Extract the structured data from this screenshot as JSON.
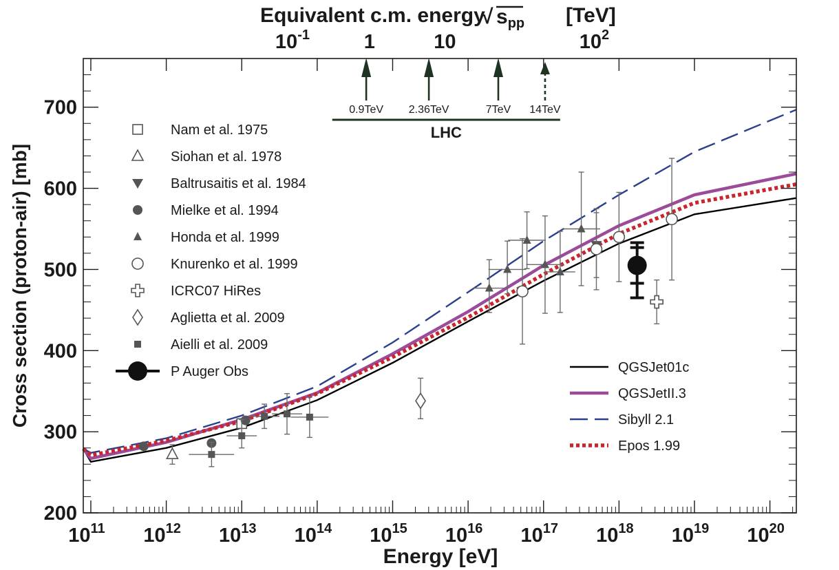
{
  "chart_data": {
    "type": "scatter",
    "title": "",
    "xlabel": "Energy    [eV]",
    "ylabel": "Cross section (proton-air)   [mb]",
    "top_axis_label": "Equivalent c.m. energy",
    "top_axis_sqrt": "√",
    "top_axis_s": "s",
    "top_axis_sub": "pp",
    "top_axis_unit": "[TeV]",
    "xscale": "log",
    "xlim_log10": [
      10.9,
      20.35
    ],
    "ylim": [
      200,
      760
    ],
    "x_ticks": [
      {
        "exp": 11,
        "base": "10",
        "sup": "11"
      },
      {
        "exp": 12,
        "base": "10",
        "sup": "12"
      },
      {
        "exp": 13,
        "base": "10",
        "sup": "13"
      },
      {
        "exp": 14,
        "base": "10",
        "sup": "14"
      },
      {
        "exp": 15,
        "base": "10",
        "sup": "15"
      },
      {
        "exp": 16,
        "base": "10",
        "sup": "16"
      },
      {
        "exp": 17,
        "base": "10",
        "sup": "17"
      },
      {
        "exp": 18,
        "base": "10",
        "sup": "18"
      },
      {
        "exp": 19,
        "base": "10",
        "sup": "19"
      },
      {
        "exp": 20,
        "base": "10",
        "sup": "20"
      }
    ],
    "y_ticks": [
      200,
      300,
      400,
      500,
      600,
      700
    ],
    "top_ticks": [
      {
        "lab_exp": 13.7,
        "base": "10",
        "sup": "-1"
      },
      {
        "lab_exp": 14.72,
        "base": "1",
        "sup": ""
      },
      {
        "lab_exp": 15.72,
        "base": "10",
        "sup": ""
      },
      {
        "lab_exp": 17.7,
        "base": "10",
        "sup": "2"
      }
    ],
    "lhc_label": "LHC",
    "lhc_range_log10": [
      14.2,
      17.22
    ],
    "lhc_arrows": [
      {
        "label": "0.9TeV",
        "x": 14.65,
        "dashed": false
      },
      {
        "label": "2.36TeV",
        "x": 15.48,
        "dashed": false
      },
      {
        "label": "7TeV",
        "x": 16.4,
        "dashed": false
      },
      {
        "label": "14TeV",
        "x": 17.02,
        "dashed": true
      }
    ],
    "series": [
      {
        "name": "Nam et al. 1975",
        "marker": "square-open",
        "points": [
          {
            "x": 13.0,
            "y": 310
          }
        ]
      },
      {
        "name": "Siohan et al. 1978",
        "marker": "triangle-up-open",
        "points": [
          {
            "x": 12.08,
            "y": 272,
            "yerr": [
              12,
              12
            ]
          }
        ]
      },
      {
        "name": "Baltrusaitis et al. 1984",
        "marker": "triangle-down-filled",
        "points": [
          {
            "x": 17.7,
            "y": 530,
            "yerr": [
              40,
              40
            ]
          }
        ]
      },
      {
        "name": "Mielke et al. 1994",
        "marker": "circle-filled",
        "points": [
          {
            "x": 11.7,
            "y": 282
          },
          {
            "x": 12.6,
            "y": 286
          },
          {
            "x": 13.05,
            "y": 314
          }
        ]
      },
      {
        "name": "Honda et al. 1999",
        "marker": "triangle-up-filled",
        "points": [
          {
            "x": 16.28,
            "y": 477,
            "yerr": [
              30,
              35
            ],
            "xerr": [
              0.22,
              0.22
            ]
          },
          {
            "x": 16.52,
            "y": 500,
            "yerr": [
              30,
              35
            ],
            "xerr": [
              0.25,
              0.25
            ]
          },
          {
            "x": 16.78,
            "y": 536,
            "yerr": [
              35,
              35
            ],
            "xerr": [
              0.25,
              0.25
            ]
          },
          {
            "x": 17.02,
            "y": 506,
            "yerr": [
              60,
              60
            ],
            "xerr": [
              0.25,
              0.25
            ]
          },
          {
            "x": 17.22,
            "y": 497,
            "yerr": [
              50,
              50
            ],
            "xerr": [
              0.2,
              0.2
            ]
          },
          {
            "x": 17.5,
            "y": 550,
            "yerr": [
              70,
              70
            ],
            "xerr": [
              0.25,
              0.25
            ]
          }
        ]
      },
      {
        "name": "Knurenko et al. 1999",
        "marker": "circle-open",
        "points": [
          {
            "x": 16.72,
            "y": 473,
            "yerr": [
              65,
              65
            ]
          },
          {
            "x": 17.7,
            "y": 525,
            "yerr": [
              50,
              50
            ]
          },
          {
            "x": 18.0,
            "y": 540,
            "yerr": [
              55,
              55
            ]
          },
          {
            "x": 18.7,
            "y": 562,
            "yerr": [
              75,
              75
            ]
          }
        ]
      },
      {
        "name": "ICRC07 HiRes",
        "marker": "cross-open",
        "points": [
          {
            "x": 18.5,
            "y": 460,
            "yerr": [
              27,
              27
            ]
          }
        ]
      },
      {
        "name": "Aglietta et al. 2009",
        "marker": "diamond-open",
        "points": [
          {
            "x": 15.37,
            "y": 338,
            "yerr": [
              22,
              28
            ]
          }
        ]
      },
      {
        "name": "Aielli et al. 2009",
        "marker": "square-filled",
        "points": [
          {
            "x": 12.6,
            "y": 272,
            "xerr": [
              0.3,
              0.3
            ],
            "yerr": [
              15,
              15
            ]
          },
          {
            "x": 13.0,
            "y": 295,
            "xerr": [
              0.2,
              0.2
            ],
            "yerr": [
              15,
              20
            ]
          },
          {
            "x": 13.3,
            "y": 319,
            "xerr": [
              0.2,
              0.2
            ],
            "yerr": [
              15,
              15
            ]
          },
          {
            "x": 13.6,
            "y": 322,
            "xerr": [
              0.2,
              0.2
            ],
            "yerr": [
              25,
              25
            ]
          },
          {
            "x": 13.9,
            "y": 318,
            "xerr": [
              0.25,
              0.25
            ],
            "yerr": [
              25,
              25
            ]
          }
        ]
      },
      {
        "name": "P Auger Obs",
        "marker": "circle-big",
        "points": [
          {
            "x": 18.24,
            "y": 505,
            "yerr_stat": [
              22,
              22
            ],
            "yerr_sys": [
              40,
              28
            ]
          }
        ]
      }
    ],
    "models": [
      {
        "name": "QGSJet01c",
        "color": "#000000",
        "style": "solid",
        "points": [
          [
            10.9,
            279
          ],
          [
            11.0,
            263
          ],
          [
            12,
            280
          ],
          [
            13,
            305
          ],
          [
            14,
            339
          ],
          [
            15,
            385
          ],
          [
            16,
            436
          ],
          [
            17,
            486
          ],
          [
            18,
            532
          ],
          [
            19,
            568
          ],
          [
            20.35,
            588
          ]
        ]
      },
      {
        "name": "QGSJetII.3",
        "color": "#9c4a9a",
        "style": "solid",
        "points": [
          [
            10.9,
            279
          ],
          [
            11.0,
            267
          ],
          [
            12,
            287
          ],
          [
            13,
            315
          ],
          [
            14,
            348
          ],
          [
            15,
            396
          ],
          [
            16,
            448
          ],
          [
            17,
            505
          ],
          [
            18,
            554
          ],
          [
            19,
            592
          ],
          [
            20.35,
            618
          ]
        ]
      },
      {
        "name": "Sibyll 2.1",
        "color": "#2b3f8c",
        "style": "dashed",
        "points": [
          [
            10.9,
            279
          ],
          [
            11.0,
            274
          ],
          [
            12,
            292
          ],
          [
            13,
            320
          ],
          [
            14,
            356
          ],
          [
            15,
            410
          ],
          [
            16,
            472
          ],
          [
            17,
            535
          ],
          [
            18,
            592
          ],
          [
            19,
            645
          ],
          [
            20.35,
            697
          ]
        ]
      },
      {
        "name": "Epos 1.99",
        "color": "#c8262d",
        "style": "dotted",
        "points": [
          [
            10.9,
            279
          ],
          [
            11.0,
            271
          ],
          [
            12,
            289
          ],
          [
            13,
            313
          ],
          [
            14,
            347
          ],
          [
            15,
            392
          ],
          [
            16,
            441
          ],
          [
            17,
            494
          ],
          [
            18,
            544
          ],
          [
            19,
            582
          ],
          [
            20.35,
            605
          ]
        ]
      }
    ],
    "legend_markers_position": "top-left",
    "legend_models_position": "bottom-right"
  }
}
